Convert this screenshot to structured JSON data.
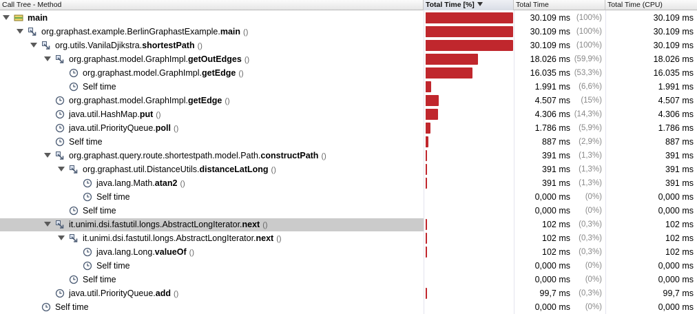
{
  "columns": {
    "method": "Call Tree - Method",
    "total_pct": "Total Time [%]",
    "total_time": "Total Time",
    "total_cpu": "Total Time (CPU)"
  },
  "colors": {
    "bar": "#c0272d",
    "selection": "#cbcbcb"
  },
  "rows": [
    {
      "depth": 0,
      "toggle": true,
      "icon": "thread-icon",
      "pkg": "",
      "method": "main",
      "params": "",
      "pct_value": 100,
      "time": "30.109",
      "unit": "ms",
      "pct": "(100%)",
      "cpu": "30.109 ms"
    },
    {
      "depth": 1,
      "toggle": true,
      "icon": "method-call-icon",
      "pkg": "org.graphast.example.BerlinGraphastExample.",
      "method": "main",
      "params": "()",
      "pct_value": 100,
      "time": "30.109",
      "unit": "ms",
      "pct": "(100%)",
      "cpu": "30.109 ms"
    },
    {
      "depth": 2,
      "toggle": true,
      "icon": "method-call-icon",
      "pkg": "org.utils.VanilaDjikstra.",
      "method": "shortestPath",
      "params": "()",
      "pct_value": 100,
      "time": "30.109",
      "unit": "ms",
      "pct": "(100%)",
      "cpu": "30.109 ms"
    },
    {
      "depth": 3,
      "toggle": true,
      "icon": "method-call-icon",
      "pkg": "org.graphast.model.GraphImpl.",
      "method": "getOutEdges",
      "params": "()",
      "pct_value": 59.9,
      "time": "18.026",
      "unit": "ms",
      "pct": "(59,9%)",
      "cpu": "18.026 ms"
    },
    {
      "depth": 4,
      "toggle": false,
      "icon": "clock-icon",
      "pkg": "org.graphast.model.GraphImpl.",
      "method": "getEdge",
      "params": "()",
      "pct_value": 53.3,
      "time": "16.035",
      "unit": "ms",
      "pct": "(53,3%)",
      "cpu": "16.035 ms"
    },
    {
      "depth": 4,
      "toggle": false,
      "icon": "clock-icon",
      "pkg": "Self time",
      "method": "",
      "params": "",
      "pct_value": 6.6,
      "time": "1.991",
      "unit": "ms",
      "pct": "(6,6%)",
      "cpu": "1.991 ms"
    },
    {
      "depth": 3,
      "toggle": false,
      "icon": "clock-icon",
      "pkg": "org.graphast.model.GraphImpl.",
      "method": "getEdge",
      "params": "()",
      "pct_value": 15,
      "time": "4.507",
      "unit": "ms",
      "pct": "(15%)",
      "cpu": "4.507 ms"
    },
    {
      "depth": 3,
      "toggle": false,
      "icon": "clock-icon",
      "pkg": "java.util.HashMap.",
      "method": "put",
      "params": "()",
      "pct_value": 14.3,
      "time": "4.306",
      "unit": "ms",
      "pct": "(14,3%)",
      "cpu": "4.306 ms"
    },
    {
      "depth": 3,
      "toggle": false,
      "icon": "clock-icon",
      "pkg": "java.util.PriorityQueue.",
      "method": "poll",
      "params": "()",
      "pct_value": 5.9,
      "time": "1.786",
      "unit": "ms",
      "pct": "(5,9%)",
      "cpu": "1.786 ms"
    },
    {
      "depth": 3,
      "toggle": false,
      "icon": "clock-icon",
      "pkg": "Self time",
      "method": "",
      "params": "",
      "pct_value": 2.9,
      "time": "887",
      "unit": "ms",
      "pct": "(2,9%)",
      "cpu": "887 ms"
    },
    {
      "depth": 3,
      "toggle": true,
      "icon": "method-call-icon",
      "pkg": "org.graphast.query.route.shortestpath.model.Path.",
      "method": "constructPath",
      "params": "()",
      "pct_value": 1.3,
      "time": "391",
      "unit": "ms",
      "pct": "(1,3%)",
      "cpu": "391 ms"
    },
    {
      "depth": 4,
      "toggle": true,
      "icon": "method-call-icon",
      "pkg": "org.graphast.util.DistanceUtils.",
      "method": "distanceLatLong",
      "params": "()",
      "pct_value": 1.3,
      "time": "391",
      "unit": "ms",
      "pct": "(1,3%)",
      "cpu": "391 ms"
    },
    {
      "depth": 5,
      "toggle": false,
      "icon": "clock-icon",
      "pkg": "java.lang.Math.",
      "method": "atan2",
      "params": "()",
      "pct_value": 1.3,
      "time": "391",
      "unit": "ms",
      "pct": "(1,3%)",
      "cpu": "391 ms"
    },
    {
      "depth": 5,
      "toggle": false,
      "icon": "clock-icon",
      "pkg": "Self time",
      "method": "",
      "params": "",
      "pct_value": 0,
      "time": "0,000",
      "unit": "ms",
      "pct": "(0%)",
      "cpu": "0,000 ms"
    },
    {
      "depth": 4,
      "toggle": false,
      "icon": "clock-icon",
      "pkg": "Self time",
      "method": "",
      "params": "",
      "pct_value": 0,
      "time": "0,000",
      "unit": "ms",
      "pct": "(0%)",
      "cpu": "0,000 ms"
    },
    {
      "depth": 3,
      "toggle": true,
      "icon": "method-call-icon",
      "pkg": "it.unimi.dsi.fastutil.longs.AbstractLongIterator.",
      "method": "next",
      "params": "()",
      "pct_value": 0.3,
      "time": "102",
      "unit": "ms",
      "pct": "(0,3%)",
      "cpu": "102 ms",
      "selected": true
    },
    {
      "depth": 4,
      "toggle": true,
      "icon": "method-call-icon",
      "pkg": "it.unimi.dsi.fastutil.longs.AbstractLongIterator.",
      "method": "next",
      "params": "()",
      "pct_value": 0.3,
      "time": "102",
      "unit": "ms",
      "pct": "(0,3%)",
      "cpu": "102 ms"
    },
    {
      "depth": 5,
      "toggle": false,
      "icon": "clock-icon",
      "pkg": "java.lang.Long.",
      "method": "valueOf",
      "params": "()",
      "pct_value": 0.3,
      "time": "102",
      "unit": "ms",
      "pct": "(0,3%)",
      "cpu": "102 ms"
    },
    {
      "depth": 5,
      "toggle": false,
      "icon": "clock-icon",
      "pkg": "Self time",
      "method": "",
      "params": "",
      "pct_value": 0,
      "time": "0,000",
      "unit": "ms",
      "pct": "(0%)",
      "cpu": "0,000 ms"
    },
    {
      "depth": 4,
      "toggle": false,
      "icon": "clock-icon",
      "pkg": "Self time",
      "method": "",
      "params": "",
      "pct_value": 0,
      "time": "0,000",
      "unit": "ms",
      "pct": "(0%)",
      "cpu": "0,000 ms"
    },
    {
      "depth": 3,
      "toggle": false,
      "icon": "clock-icon",
      "pkg": "java.util.PriorityQueue.",
      "method": "add",
      "params": "()",
      "pct_value": 0.3,
      "time": "99,7",
      "unit": "ms",
      "pct": "(0,3%)",
      "cpu": "99,7 ms"
    },
    {
      "depth": 2,
      "toggle": false,
      "icon": "clock-icon",
      "pkg": "Self time",
      "method": "",
      "params": "",
      "pct_value": 0,
      "time": "0,000",
      "unit": "ms",
      "pct": "(0%)",
      "cpu": "0,000 ms"
    }
  ]
}
